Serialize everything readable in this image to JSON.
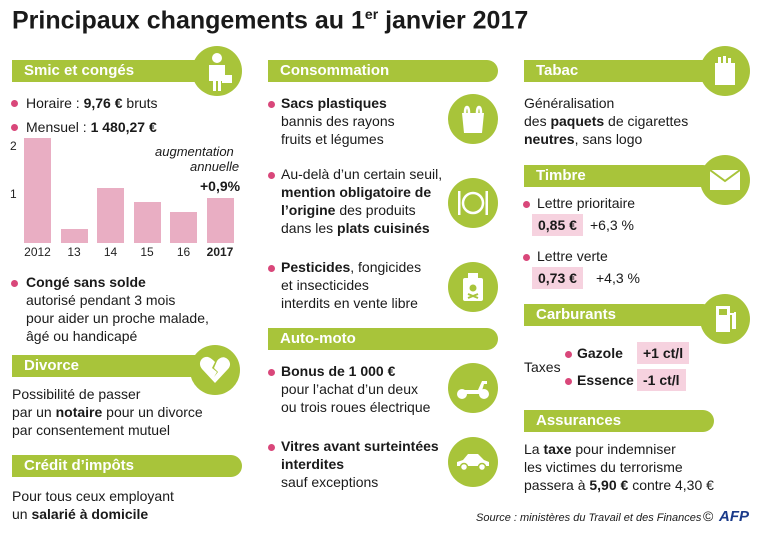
{
  "title": {
    "main": "Principaux changements au 1",
    "sup": "er",
    "rest": " janvier 2017"
  },
  "smic": {
    "header": "Smic et congés",
    "horaire_label": "Horaire : ",
    "horaire_value": "9,76 €",
    "horaire_suffix": " bruts",
    "mensuel_label": "Mensuel : ",
    "mensuel_value": "1 480,27 €",
    "aug_line1": "augmentation",
    "aug_line2": "annuelle",
    "aug_value": "+0,9%",
    "conge_title": "Congé sans solde",
    "conge_l1": "autorisé pendant 3 mois",
    "conge_l2": "pour aider un proche malade,",
    "conge_l3": "âgé ou handicapé"
  },
  "chart_data": {
    "type": "bar",
    "title": "",
    "categories": [
      "2012",
      "13",
      "14",
      "15",
      "16",
      "2017"
    ],
    "values": [
      2.2,
      0.3,
      1.15,
      0.85,
      0.65,
      0.95
    ],
    "ylim": [
      0,
      2.3
    ],
    "yticks": [
      "1",
      "2"
    ],
    "xlabel": "",
    "ylabel": ""
  },
  "divorce": {
    "header": "Divorce",
    "l1": "Possibilité de passer",
    "l2a": "par un ",
    "l2b": "notaire",
    "l2c": " pour un divorce",
    "l3": "par consentement mutuel"
  },
  "credit": {
    "header": "Crédit d’impôts",
    "l1": "Pour tous ceux employant",
    "l2a": "un ",
    "l2b": "salarié à domicile"
  },
  "consommation": {
    "header": "Consommation",
    "sacs_title": "Sacs plastiques",
    "sacs_l1": "bannis des rayons",
    "sacs_l2": "fruits et légumes",
    "orig_l1": "Au-delà d’un certain seuil,",
    "orig_l2": "mention obligatoire de",
    "orig_l3a": "l’origine",
    "orig_l3b": " des produits",
    "orig_l4a": "dans les ",
    "orig_l4b": "plats cuisinés",
    "pest_a": "Pesticides",
    "pest_b": ", fongicides",
    "pest_l2": "et insecticides",
    "pest_l3": "interdits en vente libre"
  },
  "auto": {
    "header": "Auto-moto",
    "bonus_title": "Bonus de 1 000 €",
    "bonus_l1": "pour l’achat d’un deux",
    "bonus_l2": "ou trois roues électrique",
    "vitres_l1": "Vitres avant surteintées",
    "vitres_l2": "interdites",
    "vitres_l3": "sauf exceptions"
  },
  "tabac": {
    "header": "Tabac",
    "l1": "Généralisation",
    "l2a": "des ",
    "l2b": "paquets",
    "l2c": " de cigarettes",
    "l3a": "neutres",
    "l3b": ", sans logo"
  },
  "timbre": {
    "header": "Timbre",
    "prio_label": "Lettre prioritaire",
    "prio_price": "0,85 €",
    "prio_change": "+6,3 %",
    "verte_label": "Lettre verte",
    "verte_price": "0,73 €",
    "verte_change": "+4,3 %"
  },
  "carburants": {
    "header": "Carburants",
    "taxes": "Taxes",
    "gazole": "Gazole",
    "gazole_val": "+1 ct/l",
    "essence": "Essence",
    "essence_val": "-1 ct/l"
  },
  "assurances": {
    "header": "Assurances",
    "l1a": "La ",
    "l1b": "taxe",
    "l1c": " pour indemniser",
    "l2": "les victimes du terrorisme",
    "l3a": "passera à ",
    "l3b": "5,90 €",
    "l3c": " contre 4,30 €"
  },
  "footer": {
    "source": "Source : ministères du Travail et des Finances",
    "copyright": "©",
    "logo": "AFP"
  },
  "colors": {
    "green": "#a8c43a",
    "pink": "#d9477a",
    "bar": "#e9aec3",
    "pill": "#f6d2df"
  }
}
